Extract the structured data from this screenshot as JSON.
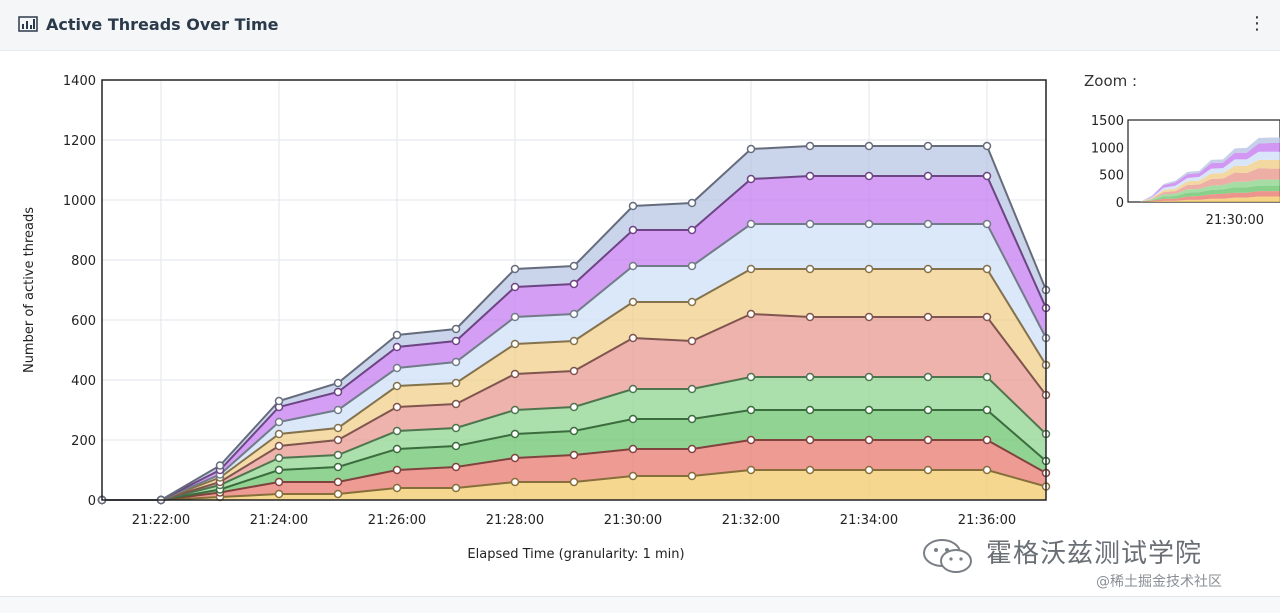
{
  "header": {
    "title": "Active Threads Over Time",
    "menu_glyph": "⋮"
  },
  "zoom": {
    "label": "Zoom :"
  },
  "watermark": {
    "line1": "霍格沃兹测试学院",
    "line2": "@稀土掘金技术社区"
  },
  "chart_data": {
    "type": "area",
    "stacked": true,
    "title": "Active Threads Over Time",
    "xlabel": "Elapsed Time (granularity: 1 min)",
    "ylabel": "Number of active threads",
    "ylim": [
      0,
      1400
    ],
    "yticks": [
      "0",
      "200",
      "400",
      "600",
      "800",
      "1000",
      "1200",
      "1400"
    ],
    "xticks": [
      "21:22:00",
      "21:24:00",
      "21:26:00",
      "21:28:00",
      "21:30:00",
      "21:32:00",
      "21:34:00",
      "21:36:00"
    ],
    "grid": true,
    "x": [
      "21:21:00",
      "21:22:00",
      "21:23:00",
      "21:24:00",
      "21:25:00",
      "21:26:00",
      "21:27:00",
      "21:28:00",
      "21:29:00",
      "21:30:00",
      "21:31:00",
      "21:32:00",
      "21:33:00",
      "21:34:00",
      "21:35:00",
      "21:36:00",
      "21:37:00"
    ],
    "series": [
      {
        "color": "#f3c96a",
        "values": [
          0,
          0,
          10,
          20,
          20,
          40,
          40,
          60,
          60,
          80,
          80,
          100,
          100,
          100,
          100,
          100,
          45
        ]
      },
      {
        "color": "#e87a70",
        "values": [
          0,
          0,
          15,
          40,
          40,
          60,
          70,
          80,
          90,
          90,
          90,
          100,
          100,
          100,
          100,
          100,
          45
        ]
      },
      {
        "color": "#6cc46e",
        "values": [
          0,
          0,
          10,
          40,
          50,
          70,
          70,
          80,
          80,
          100,
          100,
          100,
          100,
          100,
          100,
          100,
          40
        ]
      },
      {
        "color": "#8fd48f",
        "values": [
          0,
          0,
          15,
          40,
          40,
          60,
          60,
          80,
          80,
          100,
          100,
          110,
          110,
          110,
          110,
          110,
          90
        ]
      },
      {
        "color": "#e89a90",
        "values": [
          0,
          0,
          10,
          40,
          50,
          80,
          80,
          120,
          120,
          170,
          160,
          210,
          200,
          200,
          200,
          200,
          130
        ]
      },
      {
        "color": "#f0cf8a",
        "values": [
          0,
          0,
          15,
          40,
          40,
          70,
          70,
          100,
          100,
          120,
          130,
          150,
          160,
          160,
          160,
          160,
          100
        ]
      },
      {
        "color": "#cfe0f8",
        "values": [
          0,
          0,
          10,
          40,
          60,
          60,
          70,
          90,
          90,
          120,
          120,
          150,
          150,
          150,
          150,
          150,
          90
        ]
      },
      {
        "color": "#c67df0",
        "values": [
          0,
          0,
          15,
          50,
          60,
          70,
          70,
          100,
          100,
          120,
          120,
          150,
          160,
          160,
          160,
          160,
          100
        ]
      },
      {
        "color": "#b8c6e4",
        "values": [
          0,
          0,
          15,
          20,
          30,
          40,
          40,
          60,
          60,
          80,
          90,
          100,
          100,
          100,
          100,
          100,
          60
        ]
      }
    ],
    "zoom_chart": {
      "ylim": [
        0,
        1500
      ],
      "yticks": [
        "0",
        "500",
        "1000",
        "1500"
      ],
      "xticks": [
        "21:30:00"
      ]
    }
  }
}
